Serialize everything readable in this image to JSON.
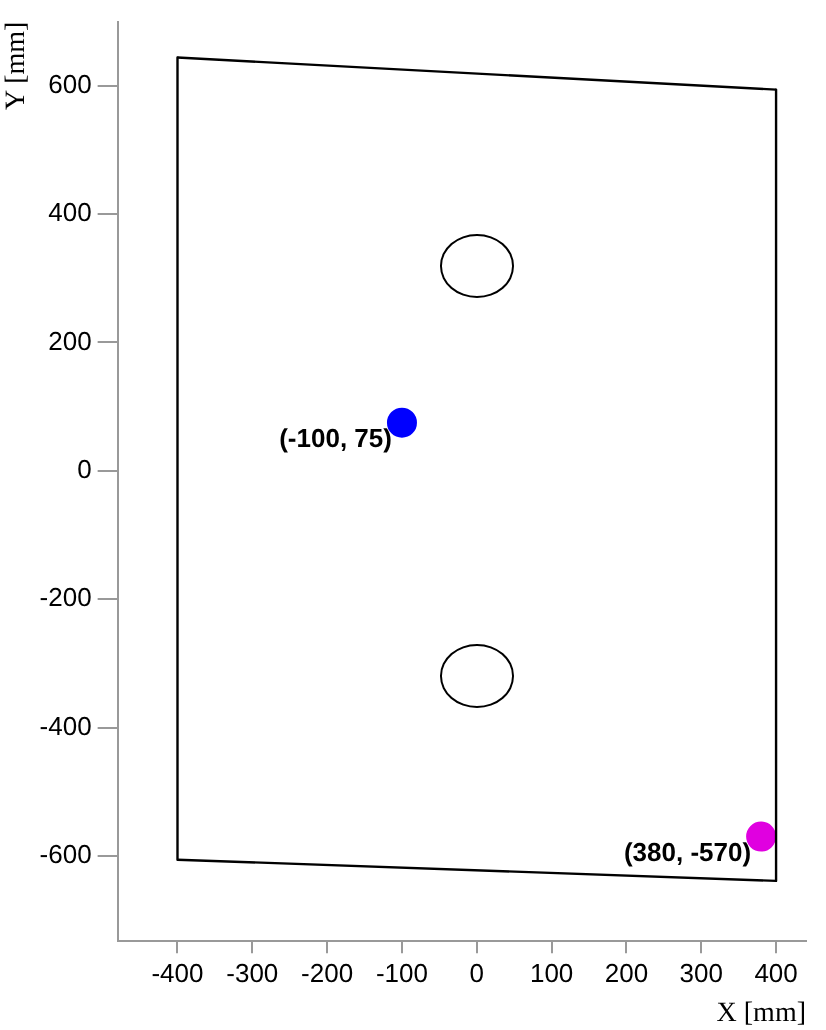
{
  "chart_data": {
    "type": "scatter",
    "xlabel": "X [mm]",
    "ylabel": "Y [mm]",
    "xlim": [
      -480,
      440
    ],
    "ylim": [
      -733,
      700
    ],
    "xticks": [
      -400,
      -300,
      -200,
      -100,
      0,
      100,
      200,
      300,
      400
    ],
    "yticks": [
      -600,
      -400,
      -200,
      0,
      200,
      400,
      600
    ],
    "grid": false,
    "legend": false,
    "series": [
      {
        "type": "line",
        "color": "#000000",
        "marker": "none",
        "x": [
          -400,
          400
        ],
        "values": [
          644,
          594
        ]
      },
      {
        "type": "line",
        "color": "#000000",
        "marker": "none",
        "x": [
          -400,
          400
        ],
        "values": [
          -606,
          -639
        ]
      },
      {
        "type": "line",
        "color": "#000000",
        "marker": "none",
        "x": [
          -400,
          -400
        ],
        "values": [
          644,
          -606
        ]
      },
      {
        "type": "line",
        "color": "#000000",
        "marker": "none",
        "x": [
          400,
          400
        ],
        "values": [
          594,
          -639
        ]
      },
      {
        "type": "scatter",
        "color": "#0000ff",
        "marker": "circle",
        "x": [
          -100
        ],
        "values": [
          75
        ]
      },
      {
        "type": "scatter",
        "color": "#e000e0",
        "marker": "circle",
        "x": [
          380
        ],
        "values": [
          -570
        ]
      }
    ],
    "annotations": [
      {
        "text": "(-100, 75)",
        "x": -100,
        "y": 75
      },
      {
        "text": "(380, -570)",
        "x": 380,
        "y": -570
      }
    ]
  }
}
